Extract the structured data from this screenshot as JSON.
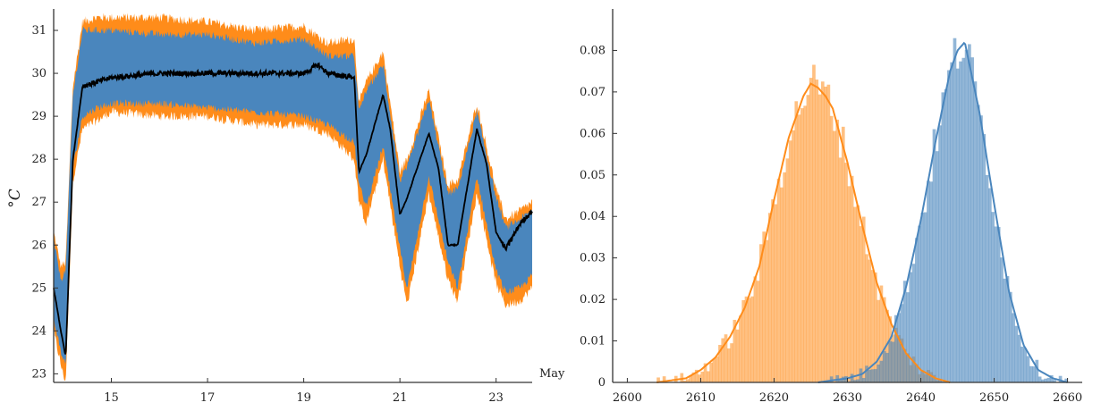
{
  "chart_data": [
    {
      "type": "area",
      "title": "",
      "xlabel": "",
      "ylabel": "°C",
      "x_unit_label": "May",
      "x_tick_labels": [
        "15",
        "17",
        "19",
        "21",
        "23"
      ],
      "x_ticks_day": [
        15,
        17,
        19,
        21,
        23
      ],
      "xlim_day": [
        13.8,
        23.75
      ],
      "ylim": [
        22.8,
        31.5
      ],
      "y_ticks": [
        23,
        24,
        25,
        26,
        27,
        28,
        29,
        30,
        31
      ],
      "y_tick_labels": [
        "23",
        "24",
        "25",
        "26",
        "27",
        "28",
        "29",
        "30",
        "31"
      ],
      "grid": false,
      "colors": {
        "outer_band": "#FF8C1A",
        "inner_band": "#4A86BD",
        "median": "#000000"
      },
      "series": [
        {
          "role": "outer_band",
          "x_day": [
            13.8,
            13.95,
            14.05,
            14.2,
            14.4,
            14.7,
            15.0,
            16.0,
            17.0,
            18.0,
            19.0,
            19.5,
            20.05,
            20.15,
            20.3,
            20.65,
            21.0,
            21.15,
            21.6,
            22.0,
            22.2,
            22.6,
            23.0,
            23.2,
            23.5,
            23.75
          ],
          "low": [
            24.0,
            23.2,
            22.8,
            27.5,
            28.7,
            28.9,
            29.1,
            29.0,
            29.0,
            28.8,
            28.8,
            28.6,
            28.0,
            27.0,
            26.5,
            28.0,
            25.5,
            24.6,
            27.2,
            25.2,
            24.7,
            27.2,
            25.1,
            24.6,
            24.7,
            25.0
          ],
          "high": [
            26.3,
            25.5,
            25.6,
            29.7,
            31.2,
            31.3,
            31.3,
            31.3,
            31.2,
            31.0,
            31.1,
            30.7,
            30.8,
            29.3,
            29.8,
            30.5,
            27.7,
            28.0,
            29.6,
            27.4,
            27.5,
            29.3,
            27.3,
            26.6,
            26.8,
            27.0
          ]
        },
        {
          "role": "inner_band",
          "x_day": [
            13.8,
            13.95,
            14.05,
            14.2,
            14.4,
            14.7,
            15.0,
            16.0,
            17.0,
            18.0,
            19.0,
            19.5,
            20.05,
            20.15,
            20.3,
            20.65,
            21.0,
            21.15,
            21.6,
            22.0,
            22.2,
            22.6,
            23.0,
            23.2,
            23.5,
            23.75
          ],
          "low": [
            24.3,
            23.5,
            23.2,
            27.8,
            29.0,
            29.2,
            29.3,
            29.3,
            29.2,
            29.1,
            29.0,
            28.8,
            28.4,
            27.4,
            26.9,
            28.3,
            25.9,
            25.0,
            27.6,
            25.6,
            25.0,
            27.6,
            25.4,
            24.9,
            25.0,
            25.3
          ],
          "high": [
            26.1,
            25.2,
            25.4,
            29.5,
            31.0,
            31.0,
            31.0,
            30.9,
            30.9,
            30.7,
            30.8,
            30.4,
            30.4,
            29.1,
            29.6,
            30.2,
            27.5,
            27.8,
            29.4,
            27.2,
            27.3,
            29.1,
            27.1,
            26.4,
            26.6,
            26.8
          ]
        },
        {
          "role": "median",
          "x_day": [
            13.8,
            13.95,
            14.05,
            14.2,
            14.4,
            14.7,
            15.0,
            16.0,
            17.0,
            18.0,
            19.0,
            19.3,
            19.5,
            20.05,
            20.15,
            20.3,
            20.65,
            20.8,
            21.0,
            21.15,
            21.6,
            21.8,
            22.0,
            22.2,
            22.6,
            22.8,
            23.0,
            23.2,
            23.5,
            23.75
          ],
          "y": [
            25.0,
            24.0,
            23.4,
            28.0,
            29.7,
            29.8,
            29.9,
            30.0,
            30.0,
            30.0,
            30.0,
            30.2,
            30.0,
            29.9,
            27.7,
            28.1,
            29.5,
            28.7,
            26.7,
            27.1,
            28.6,
            27.8,
            26.0,
            26.0,
            28.7,
            27.9,
            26.3,
            25.9,
            26.5,
            26.8
          ]
        }
      ]
    },
    {
      "type": "histogram",
      "title": "",
      "xlabel": "",
      "ylabel": "",
      "xlim": [
        2598,
        2662
      ],
      "ylim": [
        0,
        0.09
      ],
      "x_ticks": [
        2600,
        2610,
        2620,
        2630,
        2640,
        2650,
        2660
      ],
      "x_tick_labels": [
        "2600",
        "2610",
        "2620",
        "2630",
        "2640",
        "2650",
        "2660"
      ],
      "y_ticks": [
        0,
        0.01,
        0.02,
        0.03,
        0.04,
        0.05,
        0.06,
        0.07,
        0.08
      ],
      "y_tick_labels": [
        "0",
        "0.01",
        "0.02",
        "0.03",
        "0.04",
        "0.05",
        "0.06",
        "0.07",
        "0.08"
      ],
      "grid": false,
      "series": [
        {
          "color": "#FF8C1A",
          "bar_opacity": 0.55,
          "kde_x": [
            2604,
            2608,
            2610,
            2612,
            2614,
            2616,
            2618,
            2620,
            2622,
            2624,
            2625,
            2626,
            2627,
            2628,
            2630,
            2632,
            2634,
            2636,
            2638,
            2640,
            2642,
            2644
          ],
          "kde_y": [
            0.0,
            0.001,
            0.003,
            0.006,
            0.011,
            0.018,
            0.028,
            0.044,
            0.059,
            0.069,
            0.072,
            0.071,
            0.069,
            0.066,
            0.053,
            0.038,
            0.024,
            0.014,
            0.007,
            0.003,
            0.001,
            0.0
          ]
        },
        {
          "color": "#4A86BD",
          "bar_opacity": 0.6,
          "kde_x": [
            2626,
            2630,
            2632,
            2634,
            2636,
            2638,
            2640,
            2642,
            2644,
            2645,
            2646,
            2648,
            2650,
            2652,
            2654,
            2656,
            2658,
            2660
          ],
          "kde_y": [
            0.0,
            0.001,
            0.002,
            0.005,
            0.011,
            0.023,
            0.039,
            0.058,
            0.075,
            0.08,
            0.082,
            0.065,
            0.043,
            0.022,
            0.009,
            0.003,
            0.001,
            0.0
          ]
        }
      ]
    }
  ]
}
